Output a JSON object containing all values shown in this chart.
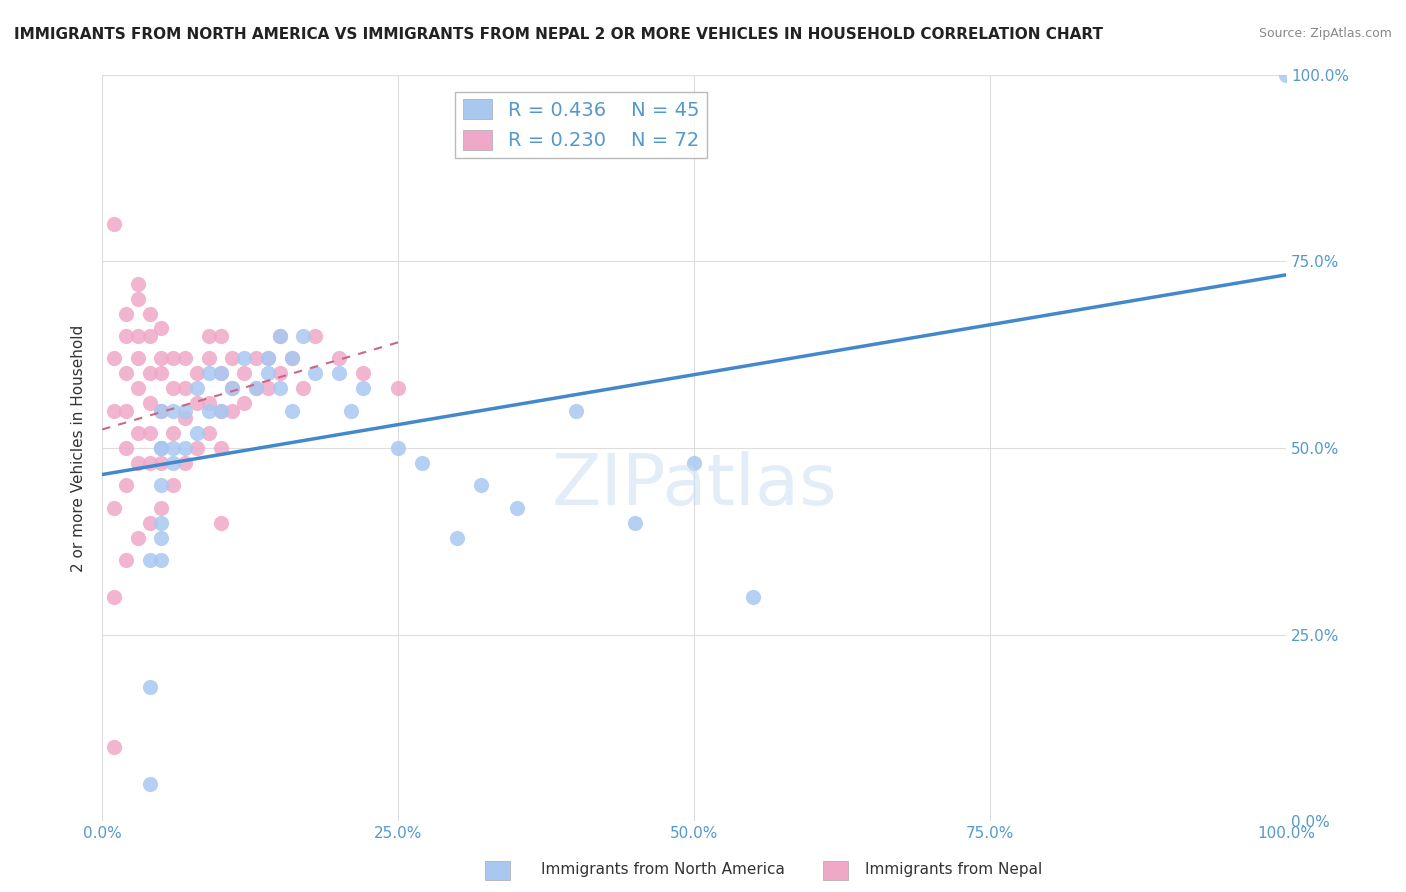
{
  "title": "IMMIGRANTS FROM NORTH AMERICA VS IMMIGRANTS FROM NEPAL 2 OR MORE VEHICLES IN HOUSEHOLD CORRELATION CHART",
  "source": "Source: ZipAtlas.com",
  "ylabel": "2 or more Vehicles in Household",
  "xlim": [
    0.0,
    100.0
  ],
  "ylim": [
    0.0,
    100.0
  ],
  "ytick_values": [
    0,
    25,
    50,
    75,
    100
  ],
  "xtick_values": [
    0,
    25,
    50,
    75,
    100
  ],
  "north_america_R": 0.436,
  "north_america_N": 45,
  "nepal_R": 0.23,
  "nepal_N": 72,
  "north_america_color": "#a8c8f0",
  "nepal_color": "#f0a8c8",
  "trend_north_america_color": "#4488cc",
  "trend_nepal_color": "#cc6688",
  "legend_box_north_america": "#a8c8f0",
  "legend_box_nepal": "#f0a8c8",
  "grid_color": "#dddddd",
  "background_color": "#ffffff",
  "watermark": "ZIPatlas",
  "north_america_x": [
    4,
    4,
    4,
    5,
    5,
    5,
    5,
    5,
    5,
    5,
    6,
    6,
    6,
    7,
    7,
    8,
    8,
    9,
    9,
    10,
    10,
    11,
    12,
    13,
    14,
    14,
    15,
    15,
    16,
    16,
    17,
    18,
    20,
    21,
    22,
    25,
    27,
    30,
    32,
    35,
    40,
    45,
    50,
    55,
    100
  ],
  "north_america_y": [
    5,
    35,
    18,
    55,
    50,
    50,
    45,
    40,
    38,
    35,
    55,
    50,
    48,
    55,
    50,
    58,
    52,
    60,
    55,
    60,
    55,
    58,
    62,
    58,
    60,
    62,
    65,
    58,
    62,
    55,
    65,
    60,
    60,
    55,
    58,
    50,
    48,
    38,
    45,
    42,
    55,
    40,
    48,
    30,
    100
  ],
  "nepal_x": [
    1,
    1,
    1,
    1,
    1,
    1,
    2,
    2,
    2,
    2,
    2,
    2,
    2,
    3,
    3,
    3,
    3,
    3,
    3,
    3,
    3,
    4,
    4,
    4,
    4,
    4,
    4,
    4,
    5,
    5,
    5,
    5,
    5,
    5,
    6,
    6,
    6,
    6,
    7,
    7,
    7,
    7,
    8,
    8,
    8,
    9,
    9,
    9,
    9,
    10,
    10,
    10,
    10,
    11,
    11,
    11,
    12,
    12,
    13,
    13,
    14,
    14,
    15,
    15,
    16,
    17,
    18,
    20,
    22,
    25,
    10,
    5
  ],
  "nepal_y": [
    10,
    30,
    42,
    55,
    62,
    80,
    35,
    45,
    50,
    55,
    60,
    65,
    68,
    38,
    48,
    52,
    58,
    62,
    65,
    70,
    72,
    40,
    48,
    52,
    56,
    60,
    65,
    68,
    42,
    50,
    55,
    60,
    62,
    66,
    45,
    52,
    58,
    62,
    48,
    54,
    58,
    62,
    50,
    56,
    60,
    52,
    56,
    62,
    65,
    50,
    55,
    60,
    65,
    55,
    58,
    62,
    56,
    60,
    58,
    62,
    58,
    62,
    60,
    65,
    62,
    58,
    65,
    62,
    60,
    58,
    40,
    48
  ]
}
